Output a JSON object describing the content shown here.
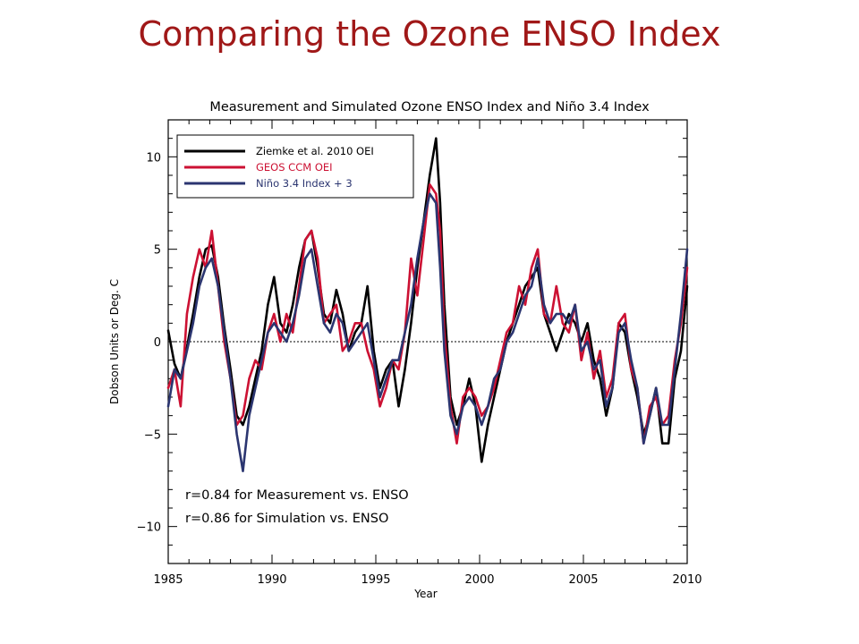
{
  "slide": {
    "title": "Comparing the Ozone ENSO Index"
  },
  "chart_data": {
    "type": "line",
    "title": "Measurement and Simulated Ozone ENSO Index and Niño 3.4 Index",
    "xlabel": "Year",
    "ylabel": "Dobson Units or Deg. C",
    "xlim": [
      1985,
      2010
    ],
    "ylim": [
      -12,
      12
    ],
    "xticks": [
      1985,
      1990,
      1995,
      2000,
      2005,
      2010
    ],
    "yticks": [
      -10,
      -5,
      0,
      5,
      10
    ],
    "legend_position": "top-left",
    "annotations": [
      "r=0.84 for Measurement vs. ENSO",
      "r=0.86 for Simulation vs. ENSO"
    ],
    "series": [
      {
        "name": "Ziemke et al. 2010 OEI",
        "color": "#000000",
        "x": [
          1985.0,
          1985.3,
          1985.6,
          1985.9,
          1986.2,
          1986.5,
          1986.8,
          1987.1,
          1987.4,
          1987.7,
          1988.0,
          1988.3,
          1988.6,
          1988.9,
          1989.2,
          1989.5,
          1989.8,
          1990.1,
          1990.4,
          1990.7,
          1991.0,
          1991.3,
          1991.6,
          1991.9,
          1992.2,
          1992.5,
          1992.8,
          1993.1,
          1993.4,
          1993.7,
          1994.0,
          1994.3,
          1994.6,
          1994.9,
          1995.2,
          1995.5,
          1995.8,
          1996.1,
          1996.4,
          1996.7,
          1997.0,
          1997.3,
          1997.6,
          1997.9,
          1998.1,
          1998.3,
          1998.6,
          1998.9,
          1999.2,
          1999.5,
          1999.8,
          2000.1,
          2000.4,
          2000.7,
          2001.0,
          2001.3,
          2001.6,
          2001.9,
          2002.2,
          2002.5,
          2002.8,
          2003.1,
          2003.4,
          2003.7,
          2004.0,
          2004.3,
          2004.6,
          2004.9,
          2005.2,
          2005.5,
          2005.8,
          2006.1,
          2006.4,
          2006.7,
          2007.0,
          2007.3,
          2007.6,
          2007.9,
          2008.2,
          2008.5,
          2008.8,
          2009.1,
          2009.4,
          2009.7,
          2010.0
        ],
        "values": [
          0.6,
          -1.2,
          -2.0,
          -0.3,
          1.5,
          3.5,
          5.0,
          5.2,
          3.5,
          0.8,
          -1.5,
          -4.0,
          -4.5,
          -3.5,
          -2.0,
          -0.5,
          2.0,
          3.5,
          1.0,
          0.5,
          2.0,
          4.0,
          5.5,
          6.0,
          4.0,
          1.5,
          1.0,
          2.8,
          1.5,
          -0.5,
          0.5,
          1.0,
          3.0,
          -0.5,
          -2.5,
          -1.5,
          -1.0,
          -3.5,
          -1.5,
          1.0,
          4.0,
          6.5,
          9.0,
          11.0,
          7.5,
          2.0,
          -3.0,
          -4.5,
          -3.5,
          -2.0,
          -3.5,
          -6.5,
          -4.5,
          -3.0,
          -1.5,
          0.0,
          1.0,
          2.0,
          3.0,
          3.5,
          4.0,
          1.5,
          0.5,
          -0.5,
          0.5,
          1.5,
          1.0,
          0.0,
          1.0,
          -1.0,
          -2.0,
          -4.0,
          -2.5,
          1.0,
          0.5,
          -1.5,
          -3.0,
          -5.0,
          -4.0,
          -2.5,
          -5.5,
          -5.5,
          -2.0,
          -0.5,
          3.0
        ]
      },
      {
        "name": "GEOS CCM OEI",
        "color": "#cc1133",
        "x": [
          1985.0,
          1985.3,
          1985.6,
          1985.9,
          1986.2,
          1986.5,
          1986.8,
          1987.1,
          1987.4,
          1987.7,
          1988.0,
          1988.3,
          1988.6,
          1988.9,
          1989.2,
          1989.5,
          1989.8,
          1990.1,
          1990.4,
          1990.7,
          1991.0,
          1991.3,
          1991.6,
          1991.9,
          1992.2,
          1992.5,
          1992.8,
          1993.1,
          1993.4,
          1993.7,
          1994.0,
          1994.3,
          1994.6,
          1994.9,
          1995.2,
          1995.5,
          1995.8,
          1996.1,
          1996.4,
          1996.7,
          1997.0,
          1997.3,
          1997.6,
          1997.9,
          1998.1,
          1998.3,
          1998.6,
          1998.9,
          1999.2,
          1999.5,
          1999.8,
          2000.1,
          2000.4,
          2000.7,
          2001.0,
          2001.3,
          2001.6,
          2001.9,
          2002.2,
          2002.5,
          2002.8,
          2003.1,
          2003.4,
          2003.7,
          2004.0,
          2004.3,
          2004.6,
          2004.9,
          2005.2,
          2005.5,
          2005.8,
          2006.1,
          2006.4,
          2006.7,
          2007.0,
          2007.3,
          2007.6,
          2007.9,
          2008.2,
          2008.5,
          2008.8,
          2009.1,
          2009.4,
          2009.7,
          2010.0
        ],
        "values": [
          -2.5,
          -1.5,
          -3.5,
          1.5,
          3.5,
          5.0,
          4.0,
          6.0,
          3.0,
          0.0,
          -2.0,
          -4.5,
          -4.0,
          -2.0,
          -1.0,
          -1.5,
          0.5,
          1.5,
          0.0,
          1.5,
          0.5,
          3.0,
          5.5,
          6.0,
          4.5,
          1.0,
          1.5,
          2.0,
          -0.5,
          0.0,
          1.0,
          1.0,
          -0.5,
          -1.5,
          -3.5,
          -2.5,
          -1.0,
          -1.5,
          0.5,
          4.5,
          2.5,
          5.5,
          8.5,
          8.0,
          6.0,
          0.5,
          -3.5,
          -5.5,
          -3.0,
          -2.5,
          -3.0,
          -4.0,
          -3.5,
          -2.5,
          -1.0,
          0.5,
          1.0,
          3.0,
          2.0,
          4.0,
          5.0,
          1.5,
          1.0,
          3.0,
          1.0,
          0.5,
          2.0,
          -1.0,
          0.5,
          -2.0,
          -0.5,
          -3.0,
          -2.0,
          1.0,
          1.5,
          -1.5,
          -2.5,
          -5.5,
          -3.5,
          -3.0,
          -4.5,
          -4.0,
          -1.0,
          1.0,
          4.0
        ]
      },
      {
        "name": "Niño 3.4 Index + 3",
        "color": "#2b3570",
        "x": [
          1985.0,
          1985.3,
          1985.6,
          1985.9,
          1986.2,
          1986.5,
          1986.8,
          1987.1,
          1987.4,
          1987.7,
          1988.0,
          1988.3,
          1988.6,
          1988.9,
          1989.2,
          1989.5,
          1989.8,
          1990.1,
          1990.4,
          1990.7,
          1991.0,
          1991.3,
          1991.6,
          1991.9,
          1992.2,
          1992.5,
          1992.8,
          1993.1,
          1993.4,
          1993.7,
          1994.0,
          1994.3,
          1994.6,
          1994.9,
          1995.2,
          1995.5,
          1995.8,
          1996.1,
          1996.4,
          1996.7,
          1997.0,
          1997.3,
          1997.6,
          1997.9,
          1998.1,
          1998.3,
          1998.6,
          1998.9,
          1999.2,
          1999.5,
          1999.8,
          2000.1,
          2000.4,
          2000.7,
          2001.0,
          2001.3,
          2001.6,
          2001.9,
          2002.2,
          2002.5,
          2002.8,
          2003.1,
          2003.4,
          2003.7,
          2004.0,
          2004.3,
          2004.6,
          2004.9,
          2005.2,
          2005.5,
          2005.8,
          2006.1,
          2006.4,
          2006.7,
          2007.0,
          2007.3,
          2007.6,
          2007.9,
          2008.2,
          2008.5,
          2008.8,
          2009.1,
          2009.4,
          2009.7,
          2010.0
        ],
        "values": [
          -3.5,
          -1.5,
          -2.0,
          -0.5,
          1.0,
          3.0,
          4.0,
          4.5,
          3.0,
          0.5,
          -2.0,
          -5.0,
          -7.0,
          -4.0,
          -2.5,
          -1.0,
          0.5,
          1.0,
          0.5,
          0.0,
          1.0,
          2.5,
          4.5,
          5.0,
          3.0,
          1.0,
          0.5,
          1.5,
          1.0,
          -0.5,
          0.0,
          0.5,
          1.0,
          -1.0,
          -3.0,
          -2.0,
          -1.0,
          -1.0,
          0.5,
          2.0,
          4.5,
          6.5,
          8.0,
          7.5,
          4.0,
          -0.5,
          -4.0,
          -5.0,
          -3.5,
          -3.0,
          -3.5,
          -4.5,
          -3.5,
          -2.0,
          -1.5,
          0.0,
          0.5,
          1.5,
          2.5,
          3.0,
          4.5,
          2.0,
          1.0,
          1.5,
          1.5,
          1.0,
          2.0,
          -0.5,
          0.0,
          -1.5,
          -1.0,
          -3.5,
          -2.5,
          0.5,
          1.0,
          -1.0,
          -2.5,
          -5.5,
          -4.0,
          -2.5,
          -4.5,
          -4.5,
          -1.5,
          1.5,
          5.0
        ]
      }
    ]
  }
}
